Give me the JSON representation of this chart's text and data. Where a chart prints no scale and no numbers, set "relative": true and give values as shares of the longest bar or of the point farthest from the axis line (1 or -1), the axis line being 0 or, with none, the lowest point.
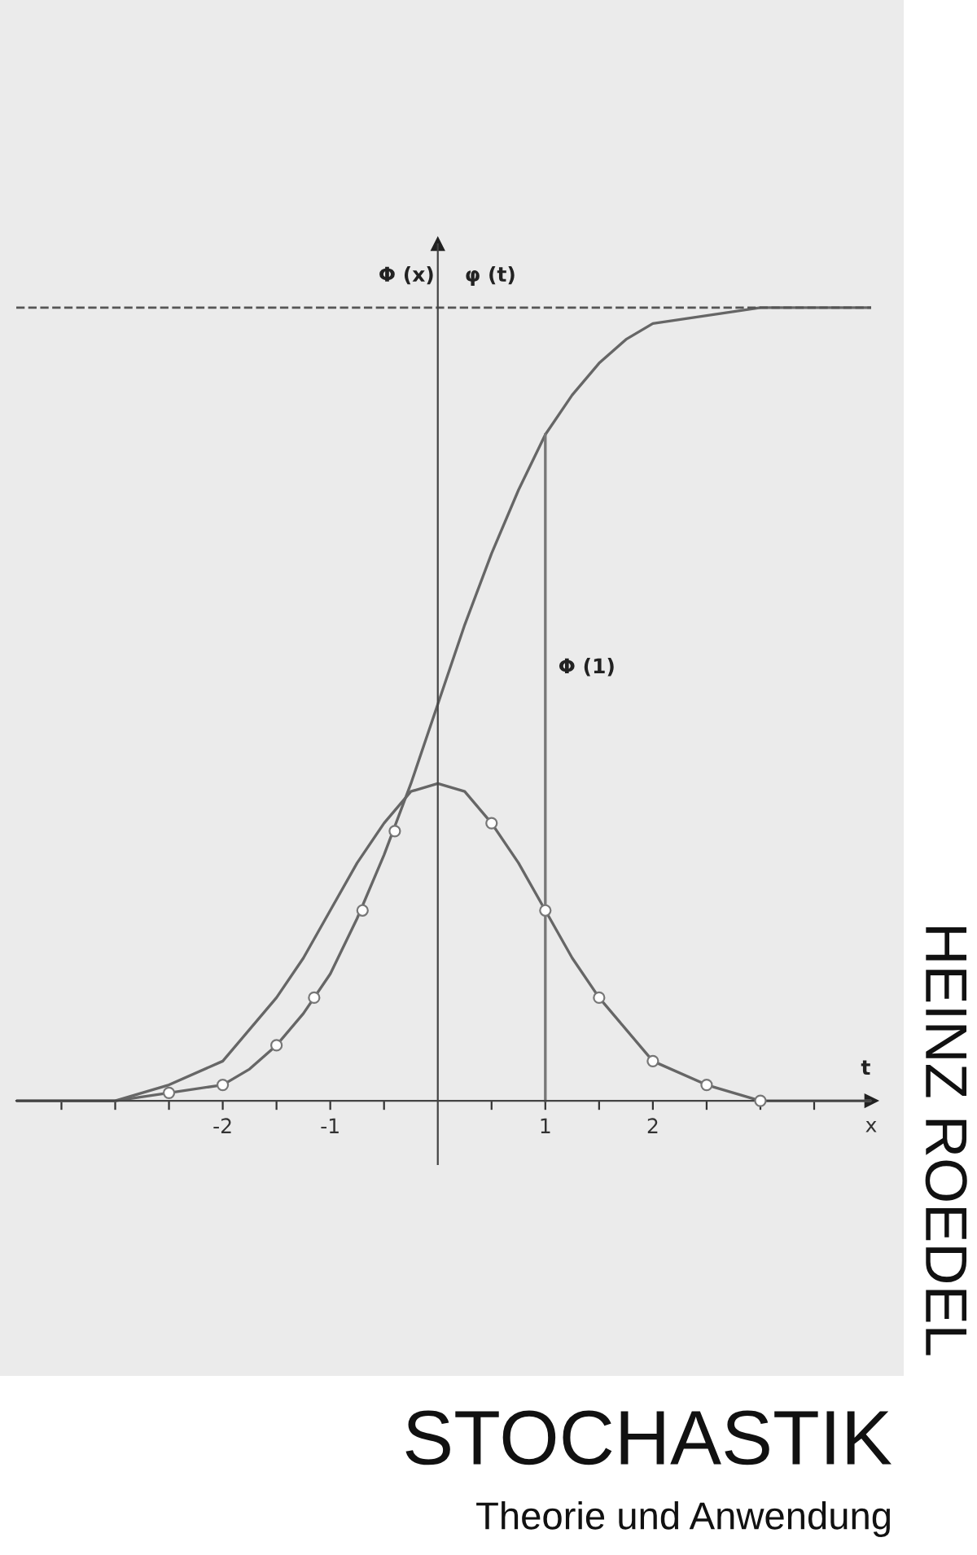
{
  "chart_data": {
    "type": "line",
    "title": "STOCHASTIK",
    "subtitle": "Theorie und Anwendung",
    "xlabel": "x",
    "relative": true,
    "xlim": [
      -3.92,
      4.03
    ],
    "xticks": [
      {
        "value": -3.5,
        "label": null
      },
      {
        "value": -3,
        "label": null
      },
      {
        "value": -2.5,
        "label": null
      },
      -2,
      {
        "value": -1.5,
        "label": null
      },
      -1,
      {
        "value": -0.5,
        "label": null
      },
      {
        "value": 0.5,
        "label": null
      },
      1,
      {
        "value": 1.5,
        "label": null
      },
      2,
      {
        "value": 2.5,
        "label": null
      },
      {
        "value": 3,
        "label": null
      },
      {
        "value": 3.5,
        "label": null
      }
    ],
    "series": [
      {
        "color": "#666666",
        "x": [
          -3.92,
          -3.5,
          -3,
          -2.5,
          -2,
          -1.75,
          -1.5,
          -1.25,
          -1,
          -0.75,
          -0.5,
          -0.25,
          0,
          0.25,
          0.5,
          0.75,
          1,
          1.25,
          1.5,
          1.75,
          2,
          2.5,
          3,
          3.5,
          4.03
        ],
        "values": [
          0,
          0,
          0,
          0.01,
          0.02,
          0.04,
          0.07,
          0.11,
          0.16,
          0.23,
          0.31,
          0.4,
          0.5,
          0.6,
          0.69,
          0.77,
          0.84,
          0.89,
          0.93,
          0.96,
          0.98,
          0.99,
          1,
          1,
          1
        ]
      },
      {
        "color": "#666666",
        "x": [
          -3.92,
          -3.5,
          -3,
          -2.5,
          -2,
          -1.75,
          -1.5,
          -1.25,
          -1,
          -0.75,
          -0.5,
          -0.25,
          0,
          0.25,
          0.5,
          0.75,
          1,
          1.25,
          1.5,
          1.75,
          2,
          2.5,
          3,
          3.5,
          4.03
        ],
        "values": [
          0,
          0,
          0,
          0.02,
          0.05,
          0.09,
          0.13,
          0.18,
          0.24,
          0.3,
          0.35,
          0.39,
          0.4,
          0.39,
          0.35,
          0.3,
          0.24,
          0.18,
          0.13,
          0.09,
          0.05,
          0.02,
          0,
          0,
          0
        ]
      },
      {
        "type": "scatter",
        "color": "#777777",
        "marker": "circle",
        "x": [
          -2.5,
          -2,
          -1.5,
          -1.15,
          -0.7,
          -0.4,
          0.5,
          1,
          1.5,
          2,
          2.5,
          3
        ],
        "values": [
          0.01,
          0.02,
          0.07,
          0.13,
          0.24,
          0.34,
          0.35,
          0.24,
          0.13,
          0.05,
          0.02,
          0
        ]
      }
    ],
    "ref_lines": [
      {
        "axis": "y",
        "value": 1,
        "line_style": "dashed",
        "color": "#555555"
      },
      {
        "axis": "x",
        "value": 1,
        "label": "Φ (1)",
        "color": "#777777"
      }
    ],
    "annotations": [
      "Φ (x)",
      "φ (t)",
      "t",
      "HEINZ ROEDEL"
    ],
    "grid": false,
    "legend": false,
    "marker": "none",
    "line_style": "solid"
  }
}
